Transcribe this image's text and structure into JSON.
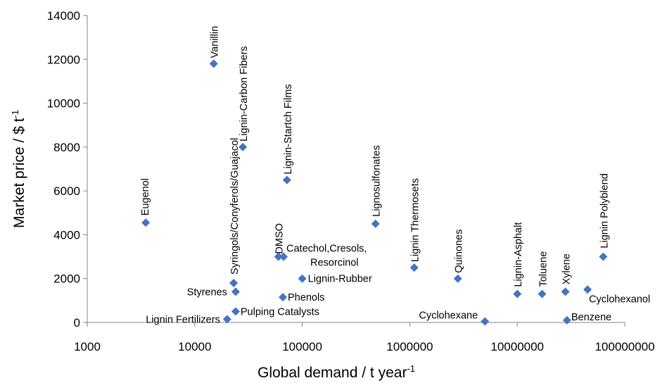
{
  "chart_data": {
    "type": "scatter",
    "title": "",
    "xlabel": "Global demand / t year",
    "xlabel_sup": "-1",
    "ylabel": "Market price / $ t",
    "ylabel_sup": "-1",
    "x_scale": "log",
    "xlim": [
      1000,
      100000000
    ],
    "ylim": [
      0,
      14000
    ],
    "x_ticks": [
      1000,
      10000,
      100000,
      1000000,
      10000000,
      100000000
    ],
    "x_tick_labels": [
      "1000",
      "10000",
      "100000",
      "1000000",
      "10000000",
      "100000000"
    ],
    "y_ticks": [
      0,
      2000,
      4000,
      6000,
      8000,
      10000,
      12000,
      14000
    ],
    "y_tick_labels": [
      "0",
      "2000",
      "4000",
      "6000",
      "8000",
      "10000",
      "12000",
      "14000"
    ],
    "grid": false,
    "legend": "none",
    "marker_color": "#4472C4",
    "points": [
      {
        "label": "Vanillin",
        "x": 15000,
        "y": 11800
      },
      {
        "label": "Lignin-Carbon Fibers",
        "x": 28000,
        "y": 8000
      },
      {
        "label": "Lignin-Startch Films",
        "x": 72000,
        "y": 6500
      },
      {
        "label": "Eugenol",
        "x": 3500,
        "y": 4550
      },
      {
        "label": "Lignosulfonates",
        "x": 480000,
        "y": 4500
      },
      {
        "label": "Syringols/Conyferols/Guajacol",
        "x": 23000,
        "y": 1800
      },
      {
        "label": "DMSO",
        "x": 60000,
        "y": 3000
      },
      {
        "label": "Catechol,Cresols,",
        "label2": "Resorcinol",
        "x": 67000,
        "y": 3000
      },
      {
        "label": "Lignin Thermosets",
        "x": 1100000,
        "y": 2500
      },
      {
        "label": "Quinones",
        "x": 2800000,
        "y": 2000
      },
      {
        "label": "Lignin-Rubber",
        "x": 100000,
        "y": 2000
      },
      {
        "label": "Lignin Polyblend",
        "x": 63000000,
        "y": 3000
      },
      {
        "label": "Lignin-Asphalt",
        "x": 10000000,
        "y": 1300
      },
      {
        "label": "Toluene",
        "x": 17000000,
        "y": 1300
      },
      {
        "label": "Xylene",
        "x": 28000000,
        "y": 1400
      },
      {
        "label": "Cyclohexanol",
        "x": 45000000,
        "y": 1500
      },
      {
        "label": "Styrenes",
        "x": 24000,
        "y": 1400
      },
      {
        "label": "Phenols",
        "x": 66000,
        "y": 1150
      },
      {
        "label": "Pulping Catalysts",
        "x": 24000,
        "y": 500
      },
      {
        "label": "Lignin Fertilizers",
        "x": 20000,
        "y": 150
      },
      {
        "label": "Cyclohexane",
        "x": 5000000,
        "y": 50
      },
      {
        "label": "Benzene",
        "x": 29000000,
        "y": 100
      }
    ]
  }
}
